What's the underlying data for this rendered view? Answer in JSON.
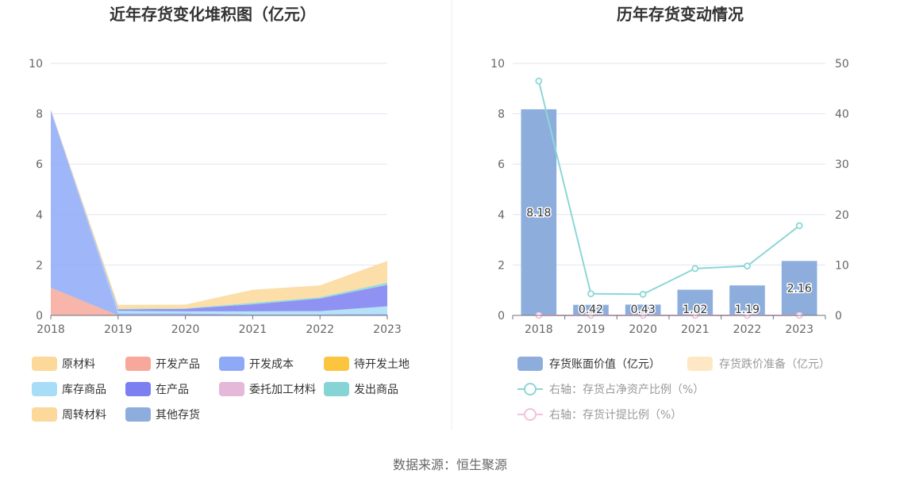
{
  "source_text": "数据来源：恒生聚源",
  "chart_data": [
    {
      "type": "area",
      "title": "近年存货变化堆积图（亿元）",
      "x": [
        "2018",
        "2019",
        "2020",
        "2021",
        "2022",
        "2023"
      ],
      "ylim": [
        0,
        10
      ],
      "yticks": [
        "0",
        "2",
        "4",
        "6",
        "8",
        "10"
      ],
      "grid": true,
      "legend_position": "bottom",
      "series": [
        {
          "name": "原材料",
          "color": "#FCD89A",
          "values": [
            0,
            0,
            0,
            0,
            0,
            0
          ]
        },
        {
          "name": "开发产品",
          "color": "#F7A89A",
          "values": [
            1.1,
            0,
            0,
            0,
            0,
            0
          ]
        },
        {
          "name": "开发成本",
          "color": "#8EAAF7",
          "values": [
            7.05,
            0.08,
            0.08,
            0.04,
            0.04,
            0.06
          ]
        },
        {
          "name": "待开发土地",
          "color": "#FCC53F",
          "values": [
            0,
            0,
            0,
            0,
            0,
            0
          ]
        },
        {
          "name": "库存商品",
          "color": "#A8DDF7",
          "values": [
            0,
            0.1,
            0.08,
            0.12,
            0.13,
            0.3
          ]
        },
        {
          "name": "在产品",
          "color": "#7B7FF0",
          "values": [
            0,
            0.06,
            0.1,
            0.28,
            0.5,
            0.85
          ]
        },
        {
          "name": "委托加工材料",
          "color": "#E5B8DA",
          "values": [
            0,
            0,
            0,
            0,
            0,
            0
          ]
        },
        {
          "name": "发出商品",
          "color": "#86D4D4",
          "values": [
            0,
            0.02,
            0.02,
            0.06,
            0.05,
            0.09
          ]
        },
        {
          "name": "周转材料",
          "color": "#FCD89A",
          "values": [
            0.03,
            0.16,
            0.15,
            0.52,
            0.47,
            0.86
          ]
        },
        {
          "name": "其他存货",
          "color": "#8DAEDC",
          "values": [
            0,
            0,
            0,
            0,
            0,
            0
          ]
        }
      ]
    },
    {
      "type": "bar",
      "title": "历年存货变动情况",
      "categories": [
        "2018",
        "2019",
        "2020",
        "2021",
        "2022",
        "2023"
      ],
      "ylim": [
        0,
        10
      ],
      "yticks": [
        "0",
        "2",
        "4",
        "6",
        "8",
        "10"
      ],
      "y2lim": [
        0,
        50
      ],
      "y2ticks": [
        "0",
        "10",
        "20",
        "30",
        "40",
        "50"
      ],
      "grid": true,
      "legend_position": "bottom",
      "series": [
        {
          "name": "存货账面价值（亿元）",
          "type": "bar",
          "axis": "left",
          "color": "#8DAEDC",
          "values": [
            8.18,
            0.42,
            0.43,
            1.02,
            1.19,
            2.16
          ],
          "labels": [
            "8.18",
            "0.42",
            "0.43",
            "1.02",
            "1.19",
            "2.16"
          ]
        },
        {
          "name": "存货跌价准备（亿元）",
          "type": "bar",
          "axis": "left",
          "color": "#FDE7C5",
          "values": [
            0,
            0,
            0,
            0,
            0,
            0
          ]
        },
        {
          "name": "右轴：存货占净资产比例（%）",
          "type": "line",
          "axis": "right",
          "color": "#8ED6D6",
          "values": [
            46.5,
            4.3,
            4.2,
            9.3,
            9.8,
            17.8
          ]
        },
        {
          "name": "右轴：存货计提比例（%）",
          "type": "line",
          "axis": "right",
          "color": "#F0C2DE",
          "values": [
            0,
            0,
            0,
            0,
            0,
            0
          ]
        }
      ]
    }
  ]
}
